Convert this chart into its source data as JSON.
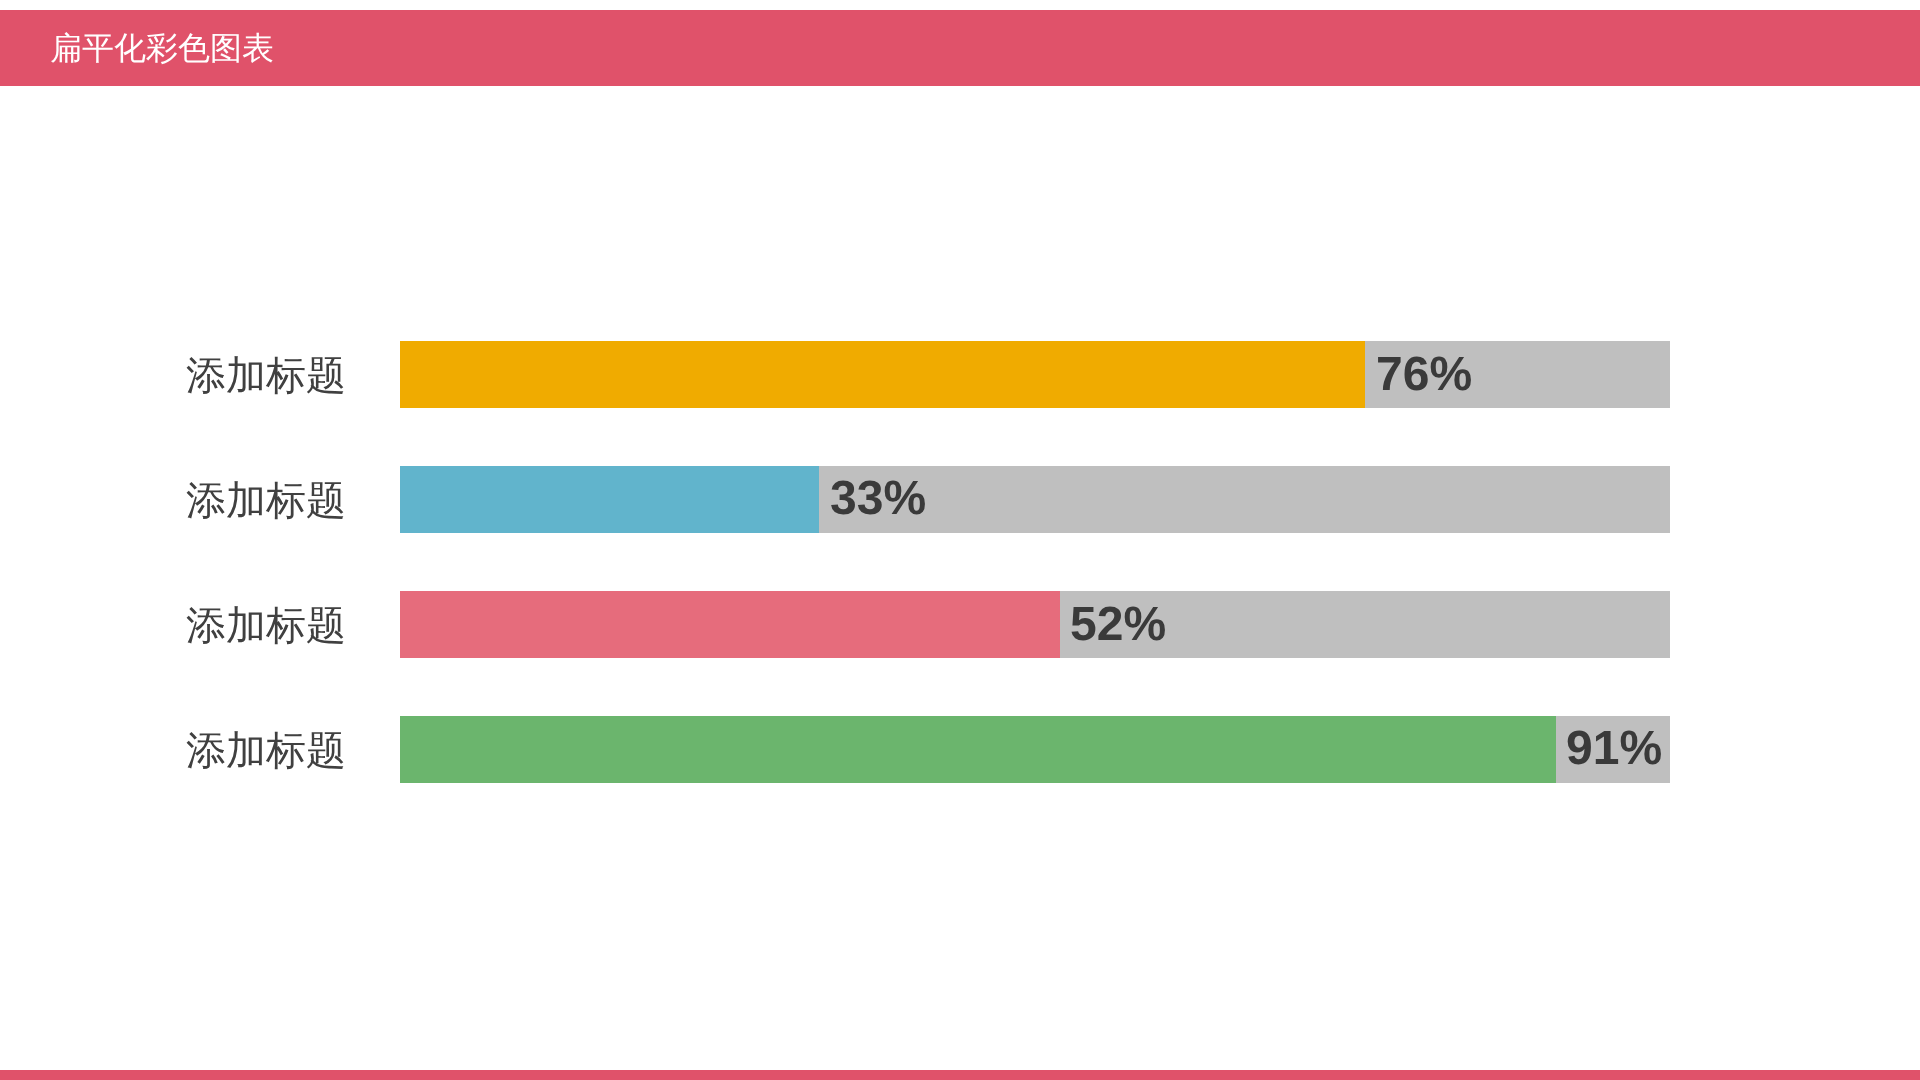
{
  "chart_data": {
    "type": "bar",
    "title": "扁平化彩色图表",
    "orientation": "horizontal",
    "stacked": true,
    "categories": [
      "添加标题",
      "添加标题",
      "添加标题",
      "添加标题"
    ],
    "series": [
      {
        "colors": [
          "#f0ab00",
          "#61b4cc",
          "#e66c7c",
          "#6bb56d"
        ],
        "values": [
          76,
          33,
          52,
          91
        ],
        "value_labels": [
          "76%",
          "33%",
          "52%",
          "91%"
        ]
      },
      {
        "color": "#bfbfbf",
        "values": [
          24,
          67,
          48,
          9
        ]
      }
    ],
    "xlim": [
      0,
      100
    ],
    "tick_labels": "y"
  }
}
